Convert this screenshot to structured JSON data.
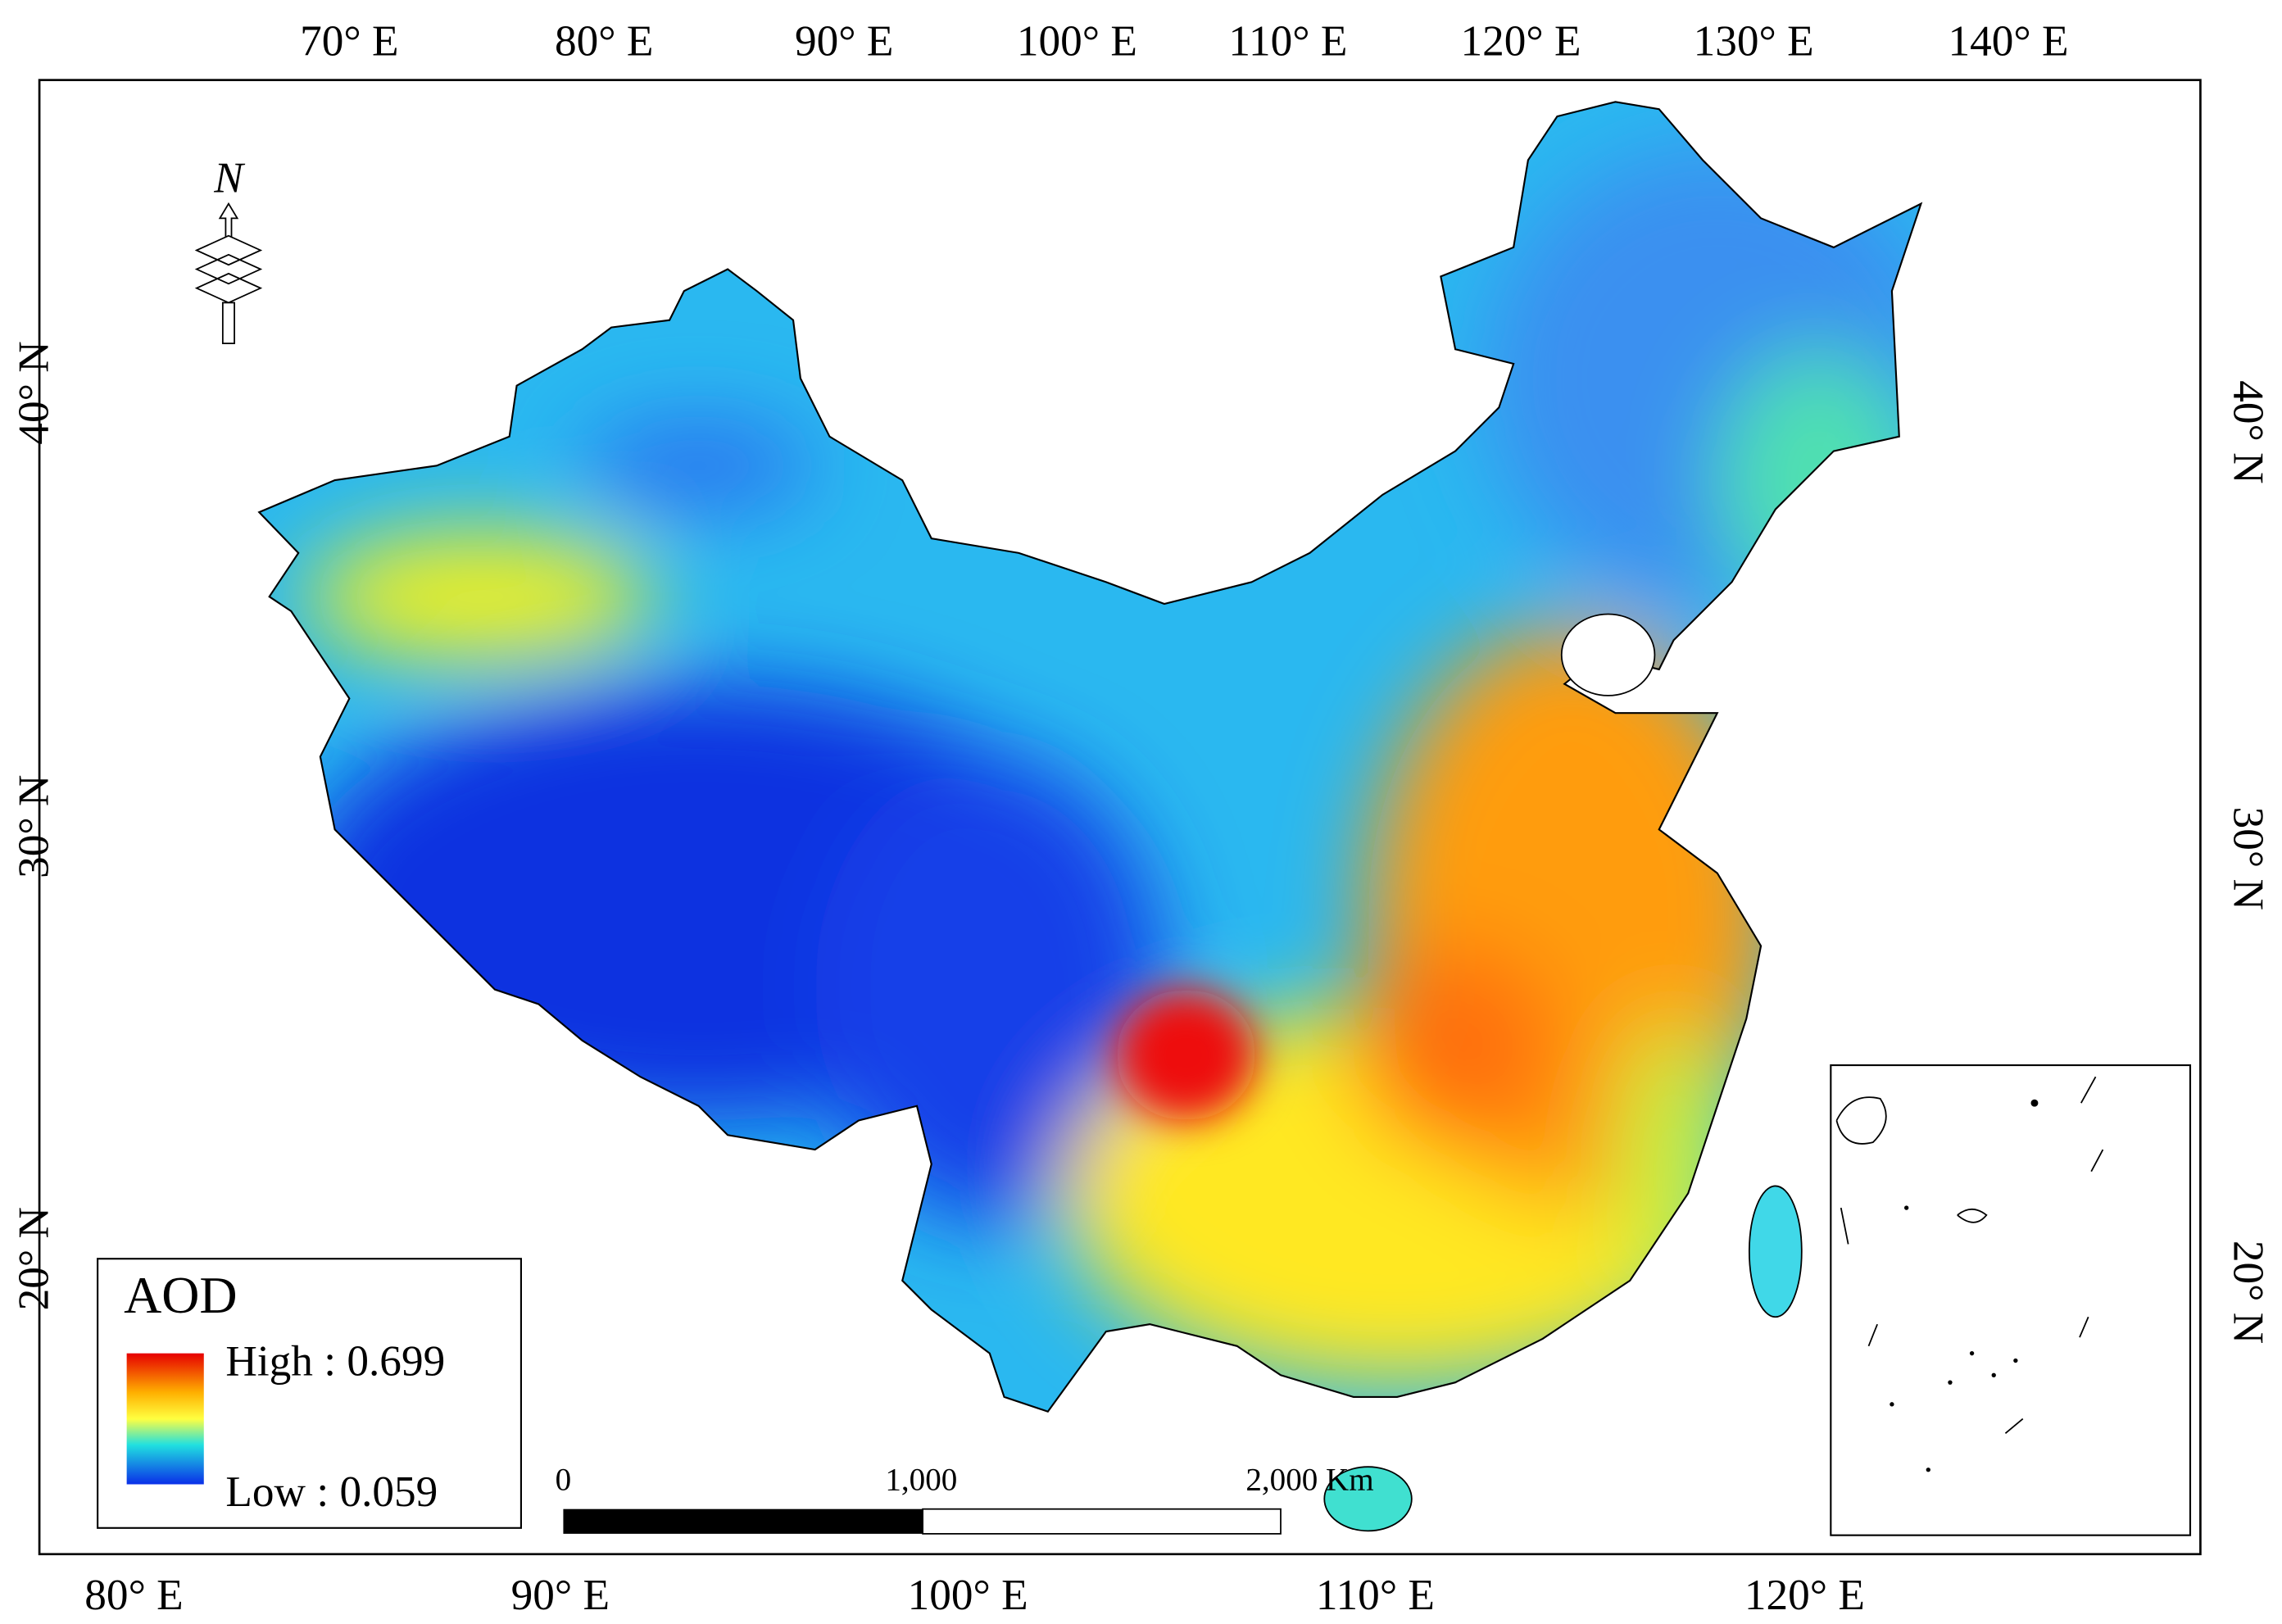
{
  "axes": {
    "top": [
      "70° E",
      "80° E",
      "90° E",
      "100° E",
      "110° E",
      "120° E",
      "130° E",
      "140° E"
    ],
    "bottom": [
      "80° E",
      "90° E",
      "100° E",
      "110° E",
      "120° E"
    ],
    "left": [
      "40° N",
      "30° N",
      "20° N"
    ],
    "right": [
      "40° N",
      "30° N",
      "20° N"
    ]
  },
  "legend": {
    "title": "AOD",
    "high": "High : 0.699",
    "low": "Low : 0.059"
  },
  "scale_bar": {
    "labels": [
      "0",
      "1,000",
      "2,000 Km"
    ]
  },
  "north_arrow": {
    "label": "N"
  }
}
